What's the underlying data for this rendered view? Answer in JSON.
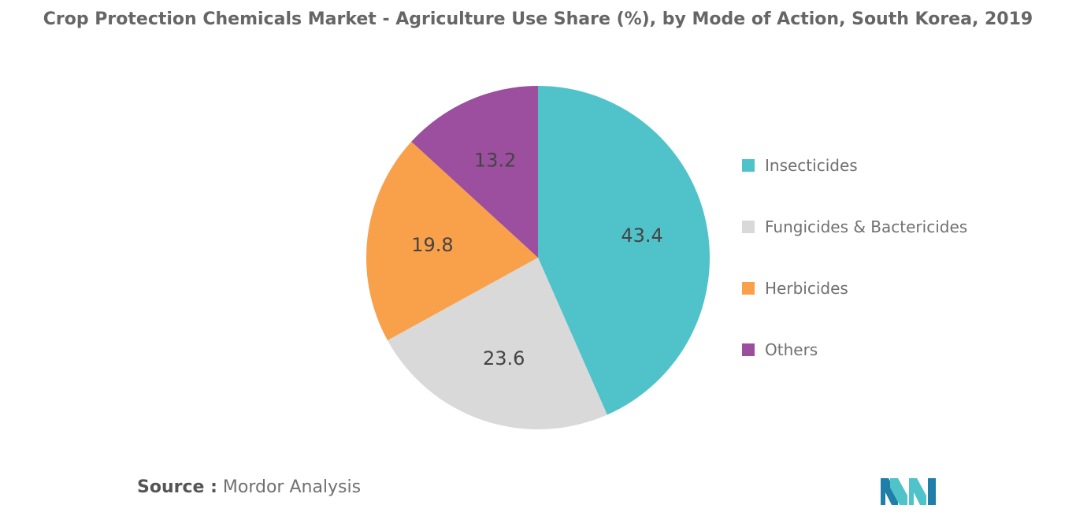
{
  "title": "Crop Protection Chemicals Market - Agriculture Use Share (%), by Mode of Action, South Korea, 2019",
  "chart_data": {
    "type": "pie",
    "title": "Crop Protection Chemicals Market - Agriculture Use Share (%), by Mode of Action, South Korea, 2019",
    "categories": [
      "Insecticides",
      "Fungicides & Bactericides",
      "Herbicides",
      "Others"
    ],
    "values": [
      43.4,
      23.6,
      19.8,
      13.2
    ],
    "labels": [
      "43.4",
      "23.6",
      "19.8",
      "13.2"
    ],
    "colors": [
      "#4fc3c9",
      "#d9d9d9",
      "#f9a04a",
      "#9b4f9e"
    ],
    "start_angle_deg": 0,
    "direction": "clockwise",
    "legend_position": "right"
  },
  "legend": [
    {
      "label": "Insecticides",
      "color": "#4fc3c9"
    },
    {
      "label": "Fungicides & Bactericides",
      "color": "#d9d9d9"
    },
    {
      "label": "Herbicides",
      "color": "#f9a04a"
    },
    {
      "label": "Others",
      "color": "#9b4f9e"
    }
  ],
  "source": {
    "prefix": "Source :",
    "text": " Mordor Analysis"
  },
  "logo": {
    "icon": "mordor-intelligence-logo-icon",
    "colors": [
      "#1f7fa8",
      "#4fc3c9"
    ]
  }
}
